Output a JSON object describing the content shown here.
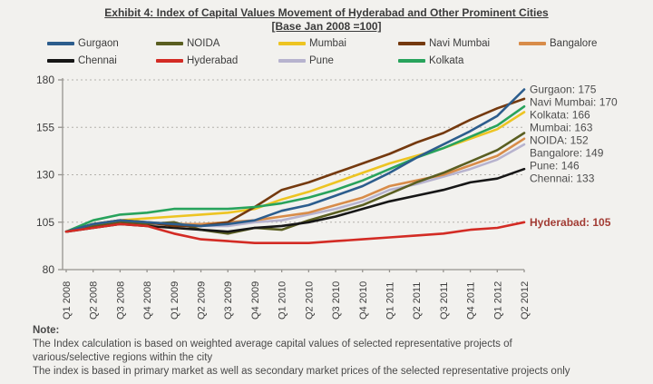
{
  "chart_data": {
    "type": "line",
    "title": "Exhibit 4: Index of Capital Values Movement of Hyderabad and Other Prominent Cities",
    "subtitle": "[Base Jan 2008 =100]",
    "xlabel": "",
    "ylabel": "",
    "ylim": [
      80,
      180
    ],
    "yticks": [
      80,
      105,
      130,
      155,
      180
    ],
    "grid": "horizontal-dotted",
    "legend_position": "top",
    "categories": [
      "Q1 2008",
      "Q2 2008",
      "Q3 2008",
      "Q4 2008",
      "Q1 2009",
      "Q2 2009",
      "Q3 2009",
      "Q4 2009",
      "Q1 2010",
      "Q2 2010",
      "Q3 2010",
      "Q4 2010",
      "Q1 2011",
      "Q2 2011",
      "Q3 2011",
      "Q4 2011",
      "Q1 2012",
      "Q2 2012"
    ],
    "series": [
      {
        "name": "Gurgaon",
        "color": "#2c5d8d",
        "values": [
          100,
          104,
          106,
          105,
          104,
          103,
          104,
          106,
          111,
          114,
          119,
          124,
          131,
          139,
          146,
          153,
          161,
          175
        ],
        "end_label": "Gurgaon: 175",
        "end_label_color": "#4d4d4d",
        "end_label_bold": false
      },
      {
        "name": "NOIDA",
        "color": "#5a5e21",
        "values": [
          100,
          103,
          105,
          104,
          105,
          101,
          99,
          102,
          101,
          106,
          110,
          114,
          120,
          126,
          131,
          137,
          143,
          152
        ],
        "end_label": "NOIDA: 152",
        "end_label_color": "#4d4d4d",
        "end_label_bold": false
      },
      {
        "name": "Mumbai",
        "color": "#edc422",
        "values": [
          100,
          104,
          106,
          107,
          108,
          109,
          110,
          112,
          117,
          121,
          126,
          131,
          136,
          140,
          144,
          149,
          154,
          163
        ],
        "end_label": "Mumbai: 163",
        "end_label_color": "#4d4d4d",
        "end_label_bold": false
      },
      {
        "name": "Navi Mumbai",
        "color": "#74390e",
        "values": [
          100,
          104,
          106,
          105,
          103,
          103,
          105,
          113,
          122,
          126,
          131,
          136,
          141,
          147,
          152,
          159,
          165,
          170
        ],
        "end_label": "Navi Mumbai: 170",
        "end_label_color": "#4d4d4d",
        "end_label_bold": false
      },
      {
        "name": "Bangalore",
        "color": "#d88c49",
        "values": [
          100,
          103,
          105,
          105,
          104,
          104,
          105,
          106,
          108,
          110,
          114,
          118,
          124,
          127,
          130,
          135,
          140,
          149
        ],
        "end_label": "Bangalore: 149",
        "end_label_color": "#4d4d4d",
        "end_label_bold": false
      },
      {
        "name": "Chennai",
        "color": "#161616",
        "values": [
          100,
          102,
          104,
          103,
          102,
          101,
          100,
          102,
          103,
          105,
          108,
          112,
          116,
          119,
          122,
          126,
          128,
          133
        ],
        "end_label": "Chennai: 133",
        "end_label_color": "#4d4d4d",
        "end_label_bold": false
      },
      {
        "name": "Hyderabad",
        "color": "#d32b24",
        "values": [
          100,
          102,
          104,
          103,
          99,
          96,
          95,
          94,
          94,
          94,
          95,
          96,
          97,
          98,
          99,
          101,
          102,
          105
        ],
        "end_label": "Hyderabad: 105",
        "end_label_color": "#a23c34",
        "end_label_bold": true
      },
      {
        "name": "Pune",
        "color": "#b7b3ce",
        "values": [
          100,
          103,
          105,
          104,
          104,
          103,
          103,
          105,
          106,
          109,
          112,
          116,
          122,
          125,
          129,
          133,
          138,
          146
        ],
        "end_label": "Pune: 146",
        "end_label_color": "#4d4d4d",
        "end_label_bold": false
      },
      {
        "name": "Kolkata",
        "color": "#28a35c",
        "values": [
          100,
          106,
          109,
          110,
          112,
          112,
          112,
          113,
          115,
          118,
          122,
          127,
          133,
          139,
          144,
          150,
          156,
          166
        ],
        "end_label": "Kolkata: 166",
        "end_label_color": "#4d4d4d",
        "end_label_bold": false
      }
    ]
  },
  "note": {
    "heading": "Note:",
    "lines": [
      "The Index calculation is based on weighted average capital values of selected representative projects of",
      "various/selective regions within the city",
      "The index is based in primary market as well as secondary market prices of the selected representative projects only"
    ]
  }
}
